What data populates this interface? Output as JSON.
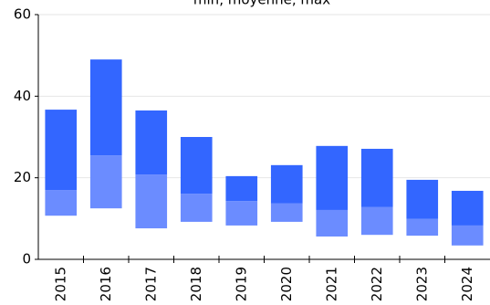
{
  "chart_data": {
    "type": "floating-bar",
    "title": "min, moyenne, max",
    "categories": [
      "2015",
      "2016",
      "2017",
      "2018",
      "2019",
      "2020",
      "2021",
      "2022",
      "2023",
      "2024"
    ],
    "min_values": [
      10.7,
      12.5,
      7.6,
      9.2,
      8.3,
      9.2,
      5.6,
      6.0,
      5.8,
      3.4
    ],
    "mean_values": [
      17.0,
      25.5,
      20.8,
      16.1,
      14.3,
      13.7,
      12.1,
      12.8,
      9.9,
      8.3
    ],
    "max_values": [
      36.7,
      49.0,
      36.5,
      30.0,
      20.4,
      23.1,
      27.8,
      27.1,
      19.5,
      16.8
    ],
    "lower_color": "#6b8cff",
    "upper_color": "#3366ff",
    "ylim": [
      0,
      60
    ],
    "yticks": [
      0,
      20,
      40,
      60
    ],
    "grid": true
  }
}
